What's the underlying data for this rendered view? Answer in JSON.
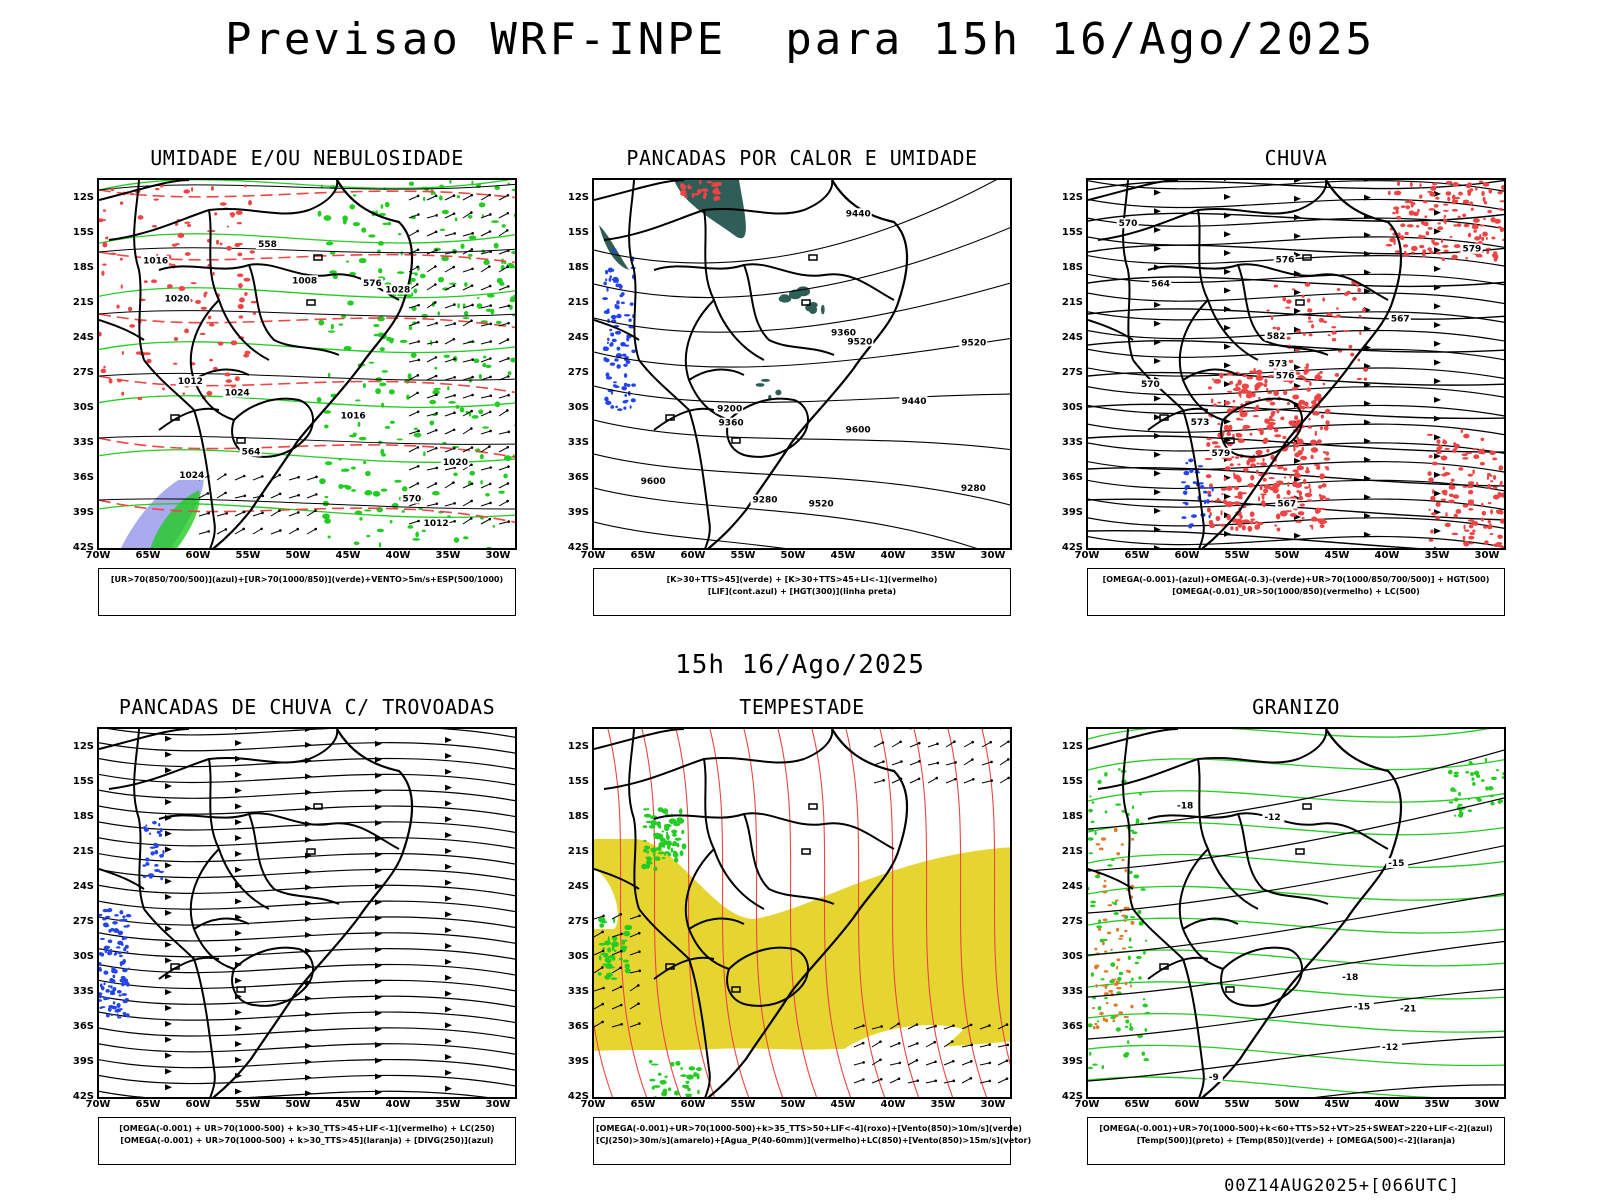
{
  "title": "Previsao WRF-INPE  para 15h 16/Ago/2025",
  "mid_title": "15h 16/Ago/2025",
  "footer": "00Z14AUG2025+[066UTC]",
  "lat_labels": [
    "12S",
    "15S",
    "18S",
    "21S",
    "24S",
    "27S",
    "30S",
    "33S",
    "36S",
    "39S",
    "42S"
  ],
  "lon_labels": [
    "70W",
    "65W",
    "60W",
    "55W",
    "50W",
    "45W",
    "40W",
    "35W",
    "30W"
  ],
  "colors": {
    "green": "#22cc22",
    "red": "#ee4444",
    "blue": "#2244ee",
    "lavender": "#aaaaee",
    "teal": "#2f5d57",
    "yellow": "#e6d530",
    "black": "#000000"
  },
  "panels": [
    {
      "id": "umidade",
      "title": "UMIDADE E/OU NEBULOSIDADE",
      "legend": [
        "[UR>70(850/700/500)](azul)+[UR>70(1000/850)](verde)+VENTO>5m/s+ESP(500/1000)"
      ],
      "contour_labels": [
        "1012",
        "1012",
        "1016",
        "1016",
        "1020",
        "1020",
        "1024",
        "1024",
        "1028",
        "1008",
        "576",
        "570",
        "564",
        "558"
      ]
    },
    {
      "id": "pancadas-calor",
      "title": "PANCADAS POR CALOR E UMIDADE",
      "legend": [
        "[K>30+TTS>45](verde) + [K>30+TTS>45+LI<-1](vermelho)",
        "[LIF](cont.azul) + [HGT(300)](linha preta)"
      ],
      "contour_labels": [
        "9600",
        "9600",
        "9520",
        "9520",
        "9520",
        "9440",
        "9440",
        "9360",
        "9360",
        "9280",
        "9280",
        "9200"
      ]
    },
    {
      "id": "chuva",
      "title": "CHUVA",
      "legend": [
        "[OMEGA(-0.001)-(azul)+OMEGA(-0.3)-(verde)+UR>70(1000/850/700/500)] + HGT(500)",
        "[OMEGA(-0.01)_UR>50(1000/850)(vermelho) + LC(500)"
      ],
      "contour_labels": [
        "582",
        "579",
        "576",
        "573",
        "570",
        "567",
        "564",
        "579",
        "576",
        "573",
        "570",
        "567"
      ]
    },
    {
      "id": "trovoadas",
      "title": "PANCADAS DE CHUVA C/ TROVOADAS",
      "legend": [
        "[OMEGA(-0.001) + UR>70(1000-500) + k>30_TTS>45+LIF<-1](vermelho) + LC(250)",
        "[OMEGA(-0.001) + UR>70(1000-500) + k>30_TTS>45](laranja) + [DIVG(250)](azul)"
      ],
      "contour_labels": []
    },
    {
      "id": "tempestade",
      "title": "TEMPESTADE",
      "legend": [
        "[OMEGA(-0.001)+UR>70(1000-500)+k>35_TTS>50+LIF<-4](roxo)+[Vento(850)>10m/s](verde)",
        "[CJ(250)>30m/s](amarelo)+[Agua_P(40-60mm)](vermelho)+LC(850)+[Vento(850)>15m/s](vetor)"
      ],
      "contour_labels": []
    },
    {
      "id": "granizo",
      "title": "GRANIZO",
      "legend": [
        "[OMEGA(-0.001)+UR>70(1000-500)+k<60+TTS>52+VT>25+SWEAT>220+LIF<-2](azul)",
        "[Temp(500)](preto) + [Temp(850)](verde) + [OMEGA(500)<-2](laranja)"
      ],
      "contour_labels": [
        "-12",
        "-12",
        "-15",
        "-15",
        "-18",
        "-18",
        "-21",
        "-9"
      ]
    }
  ]
}
